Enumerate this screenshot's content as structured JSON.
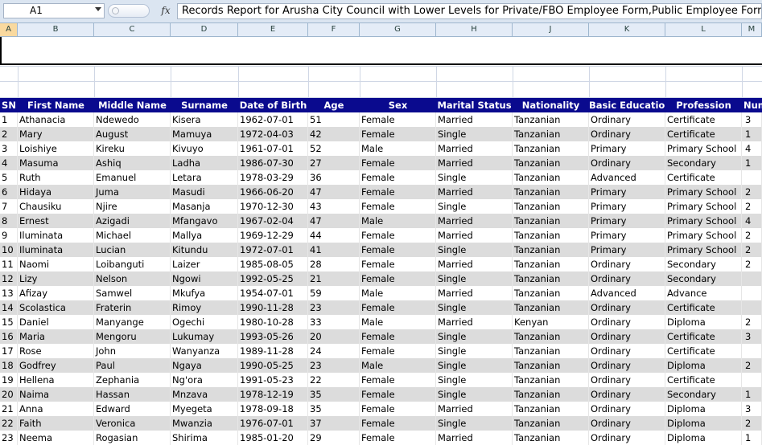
{
  "formula_bar": {
    "name_box": "A1",
    "fx_label": "fx",
    "formula": "Records Report for Arusha City Council with Lower Levels for Private/FBO Employee Form,Public Employee Form"
  },
  "column_headers": [
    "A",
    "B",
    "C",
    "D",
    "E",
    "F",
    "G",
    "H",
    "J",
    "K",
    "L",
    "M"
  ],
  "table": {
    "headers": [
      "SN",
      "First Name",
      "Middle Name",
      "Surname",
      "Date of Birth",
      "Age",
      "Sex",
      "Marital Status",
      "Nationality",
      "Basic Education",
      "Profession",
      "Num"
    ],
    "rows": [
      [
        "1",
        "Athanacia",
        "Ndewedo",
        "Kisera",
        "1962-07-01",
        "51",
        "Female",
        "Married",
        "Tanzanian",
        "Ordinary",
        "Certificate",
        "3"
      ],
      [
        "2",
        "Mary",
        "August",
        "Mamuya",
        "1972-04-03",
        "42",
        "Female",
        "Single",
        "Tanzanian",
        "Ordinary",
        "Certificate",
        "1"
      ],
      [
        "3",
        "Loishiye",
        "Kireku",
        "Kivuyo",
        "1961-07-01",
        "52",
        "Male",
        "Married",
        "Tanzanian",
        "Primary",
        "Primary School",
        "4"
      ],
      [
        "4",
        "Masuma",
        "Ashiq",
        "Ladha",
        "1986-07-30",
        "27",
        "Female",
        "Married",
        "Tanzanian",
        "Ordinary",
        "Secondary",
        "1"
      ],
      [
        "5",
        "Ruth",
        "Emanuel",
        "Letara",
        "1978-03-29",
        "36",
        "Female",
        "Single",
        "Tanzanian",
        "Advanced",
        "Certificate",
        ""
      ],
      [
        "6",
        "Hidaya",
        "Juma",
        "Masudi",
        "1966-06-20",
        "47",
        "Female",
        "Married",
        "Tanzanian",
        "Primary",
        "Primary School",
        "2"
      ],
      [
        "7",
        "Chausiku",
        "Njire",
        "Masanja",
        "1970-12-30",
        "43",
        "Female",
        "Single",
        "Tanzanian",
        "Primary",
        "Primary School",
        "2"
      ],
      [
        "8",
        "Ernest",
        "Azigadi",
        "Mfangavo",
        "1967-02-04",
        "47",
        "Male",
        "Married",
        "Tanzanian",
        "Primary",
        "Primary School",
        "4"
      ],
      [
        "9",
        "Iluminata",
        "Michael",
        "Mallya",
        "1969-12-29",
        "44",
        "Female",
        "Married",
        "Tanzanian",
        "Primary",
        "Primary School",
        "2"
      ],
      [
        "10",
        "Iluminata",
        "Lucian",
        "Kitundu",
        "1972-07-01",
        "41",
        "Female",
        "Single",
        "Tanzanian",
        "Primary",
        "Primary School",
        "2"
      ],
      [
        "11",
        "Naomi",
        "Loibanguti",
        "Laizer",
        "1985-08-05",
        "28",
        "Female",
        "Married",
        "Tanzanian",
        "Ordinary",
        "Secondary",
        "2"
      ],
      [
        "12",
        "Lizy",
        "Nelson",
        "Ngowi",
        "1992-05-25",
        "21",
        "Female",
        "Single",
        "Tanzanian",
        "Ordinary",
        "Secondary",
        ""
      ],
      [
        "13",
        "Afizay",
        "Samwel",
        "Mkufya",
        "1954-07-01",
        "59",
        "Male",
        "Married",
        "Tanzanian",
        "Advanced",
        "Advance",
        ""
      ],
      [
        "14",
        "Scolastica",
        "Fraterin",
        "Rimoy",
        "1990-11-28",
        "23",
        "Female",
        "Single",
        "Tanzanian",
        "Ordinary",
        "Certificate",
        ""
      ],
      [
        "15",
        "Daniel",
        "Manyange",
        "Ogechi",
        "1980-10-28",
        "33",
        "Male",
        "Married",
        "Kenyan",
        "Ordinary",
        "Diploma",
        "2"
      ],
      [
        "16",
        "Maria",
        "Mengoru",
        "Lukumay",
        "1993-05-26",
        "20",
        "Female",
        "Single",
        "Tanzanian",
        "Ordinary",
        "Certificate",
        "3"
      ],
      [
        "17",
        "Rose",
        "John",
        "Wanyanza",
        "1989-11-28",
        "24",
        "Female",
        "Single",
        "Tanzanian",
        "Ordinary",
        "Certificate",
        ""
      ],
      [
        "18",
        "Godfrey",
        "Paul",
        "Ngaya",
        "1990-05-25",
        "23",
        "Male",
        "Single",
        "Tanzanian",
        "Ordinary",
        "Diploma",
        "2"
      ],
      [
        "19",
        "Hellena",
        "Zephania",
        "Ng'ora",
        "1991-05-23",
        "22",
        "Female",
        "Single",
        "Tanzanian",
        "Ordinary",
        "Certificate",
        ""
      ],
      [
        "20",
        "Naima",
        "Hassan",
        "Mnzava",
        "1978-12-19",
        "35",
        "Female",
        "Single",
        "Tanzanian",
        "Ordinary",
        "Secondary",
        "1"
      ],
      [
        "21",
        "Anna",
        "Edward",
        "Myegeta",
        "1978-09-18",
        "35",
        "Female",
        "Married",
        "Tanzanian",
        "Ordinary",
        "Diploma",
        "3"
      ],
      [
        "22",
        "Faith",
        "Veronica",
        "Mwanzia",
        "1976-07-01",
        "37",
        "Female",
        "Single",
        "Tanzanian",
        "Ordinary",
        "Diploma",
        "2"
      ],
      [
        "23",
        "Neema",
        "Rogasian",
        "Shirima",
        "1985-01-20",
        "29",
        "Female",
        "Married",
        "Tanzanian",
        "Ordinary",
        "Diploma",
        "1"
      ]
    ]
  }
}
